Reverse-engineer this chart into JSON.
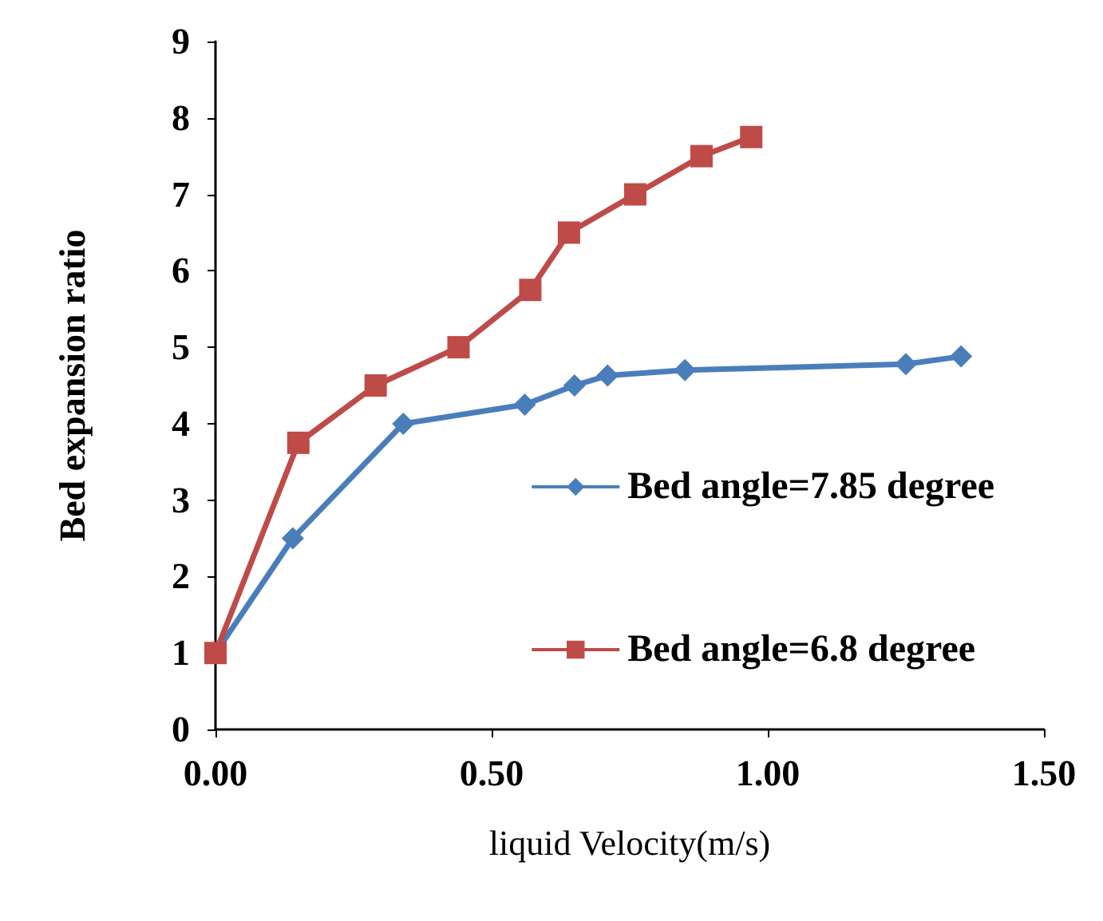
{
  "chart_data": {
    "type": "line",
    "xlabel": "liquid Velocity(m/s)",
    "ylabel": "Bed expansion ratio",
    "xlim": [
      0,
      1.5
    ],
    "xticks": [
      {
        "value": 0,
        "label": "0.00"
      },
      {
        "value": 0.5,
        "label": "0.50"
      },
      {
        "value": 1,
        "label": "1.00"
      },
      {
        "value": 1.5,
        "label": "1.50"
      }
    ],
    "ylim": [
      0,
      9
    ],
    "yticks": [
      0,
      1,
      2,
      3,
      4,
      5,
      6,
      7,
      8,
      9
    ],
    "grid": false,
    "legend": "right",
    "series": [
      {
        "name": "Bed angle=7.85 degree",
        "color": "#4a7ebb",
        "marker": "diamond",
        "x": [
          0,
          0.14,
          0.34,
          0.56,
          0.65,
          0.71,
          0.85,
          1.25,
          1.35
        ],
        "values": [
          1,
          2.5,
          4,
          4.25,
          4.5,
          4.63,
          4.7,
          4.78,
          4.88
        ]
      },
      {
        "name": "Bed angle=6.8 degree",
        "color": "#be4b48",
        "marker": "square",
        "x": [
          0,
          0.15,
          0.29,
          0.44,
          0.57,
          0.64,
          0.76,
          0.88,
          0.97
        ],
        "values": [
          1,
          3.75,
          4.5,
          5,
          5.75,
          6.5,
          7,
          7.5,
          7.75
        ]
      }
    ]
  }
}
